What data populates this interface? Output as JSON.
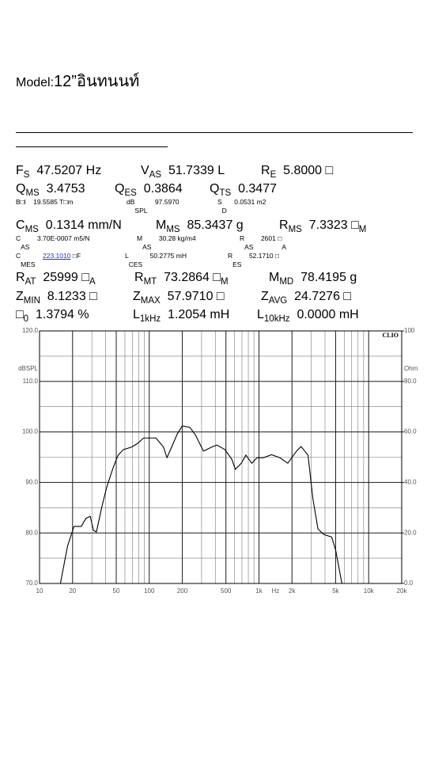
{
  "model": {
    "label": "Model:",
    "name": "12”อินทนนท์"
  },
  "params": [
    {
      "size": "large",
      "items": [
        {
          "label": "F",
          "sub": "S",
          "value": "47.5207 Hz"
        },
        {
          "label": "V",
          "sub": "AS",
          "value": "51.7339 L"
        },
        {
          "label": "R",
          "sub": "E",
          "value": "5.8000 □"
        }
      ]
    },
    {
      "size": "large",
      "items": [
        {
          "label": "Q",
          "sub": "MS",
          "value": "3.4753"
        },
        {
          "label": "Q",
          "sub": "ES",
          "value": "0.3864"
        },
        {
          "label": "Q",
          "sub": "TS",
          "value": "0.3477"
        }
      ]
    },
    {
      "size": "small",
      "items": [
        {
          "label": "B□l",
          "value": "19.5585 T□m"
        },
        {
          "label": "dB",
          "sub": "SPL",
          "value": "97.5970"
        },
        {
          "label": "S",
          "sub": "D",
          "value": "0.0531 m2"
        }
      ]
    },
    {
      "size": "large",
      "items": [
        {
          "label": "C",
          "sub": "MS",
          "value": "0.1314 mm/N"
        },
        {
          "label": "M",
          "sub": "MS",
          "value": "85.3437 g"
        },
        {
          "label": "R",
          "sub": "MS",
          "value": "7.3323 □",
          "value_sub": "M"
        }
      ]
    },
    {
      "size": "small",
      "items": [
        {
          "label": "C",
          "sub": "AS",
          "value": "3.70E-0007 m5/N"
        },
        {
          "label": "M",
          "sub": "AS",
          "value": "30.28 kg/m4"
        },
        {
          "label": "R",
          "sub": "AS",
          "value": "2601 □",
          "value_sub": "A"
        }
      ]
    },
    {
      "size": "small",
      "items": [
        {
          "label": "C",
          "sub": "MES",
          "value": "223.1010",
          "unit": "□F"
        },
        {
          "label": "L",
          "sub": "CES",
          "value": "50.2775 mH"
        },
        {
          "label": "R",
          "sub": "ES",
          "value": "52.1710 □"
        }
      ]
    },
    {
      "size": "large",
      "items": [
        {
          "label": "R",
          "sub": "AT",
          "value": "25999 □",
          "value_sub": "A"
        },
        {
          "label": "R",
          "sub": "MT",
          "value": "73.2864 □",
          "value_sub": "M"
        },
        {
          "label": "M",
          "sub": "MD",
          "value": "78.4195 g"
        }
      ]
    },
    {
      "size": "large",
      "items": [
        {
          "label": "Z",
          "sub": "MIN",
          "value": "8.1233 □"
        },
        {
          "label": "Z",
          "sub": "MAX",
          "value": "57.9710 □"
        },
        {
          "label": "Z",
          "sub": "AVG",
          "value": "24.7276 □"
        }
      ]
    },
    {
      "size": "large",
      "items": [
        {
          "label": "□",
          "sub": "0",
          "value": "1.3794 %"
        },
        {
          "label": "L",
          "sub": "1kHz",
          "value": "1.2054 mH"
        },
        {
          "label": "L",
          "sub": "10kHz",
          "value": "0.0000 mH"
        }
      ]
    }
  ],
  "chart_data": {
    "type": "line",
    "brand": "CLIO",
    "x_label": "Hz",
    "y_label": "dBSPL",
    "y2_label": "Ohm",
    "log_x": true,
    "grid": true,
    "color": "#000000",
    "xlim": [
      10,
      20000
    ],
    "xticks": [
      10,
      20,
      50,
      100,
      200,
      500,
      {
        "value": 1000,
        "label": "1k"
      },
      {
        "value": 2000,
        "label": "2k"
      },
      {
        "value": 5000,
        "label": "5k"
      },
      {
        "value": 10000,
        "label": "10k"
      },
      {
        "value": 20000,
        "label": "20k"
      }
    ],
    "ylim": [
      70,
      120
    ],
    "yticks": [
      {
        "value": 120,
        "label": "120.0"
      },
      {
        "value": 110,
        "label": "110.0"
      },
      {
        "value": 100,
        "label": "100.0"
      },
      {
        "value": 90,
        "label": "90.0"
      },
      {
        "value": 80,
        "label": "80.0"
      },
      {
        "value": 70,
        "label": "70.0"
      }
    ],
    "y2lim": [
      0,
      100
    ],
    "y2ticks": [
      100,
      {
        "value": 80,
        "label": "80.0"
      },
      {
        "value": 60,
        "label": "60.0"
      },
      {
        "value": 40,
        "label": "40.0"
      },
      {
        "value": 20,
        "label": "20.0"
      },
      {
        "value": 0,
        "label": "0.0"
      }
    ],
    "x": [
      15.5,
      18,
      20.6,
      24,
      26.5,
      29,
      31,
      33,
      37,
      41,
      47,
      52,
      58,
      69,
      78,
      89,
      115,
      135,
      145,
      160,
      180,
      200,
      235,
      265,
      312,
      370,
      414,
      490,
      565,
      610,
      690,
      760,
      860,
      960,
      1100,
      1300,
      1550,
      1830,
      2200,
      2420,
      2800,
      3100,
      3450,
      3900,
      4600,
      5000,
      5700
    ],
    "values": [
      70,
      77.4,
      81.3,
      81.3,
      82.9,
      83.3,
      80.5,
      80.2,
      85.2,
      89.1,
      93,
      95.4,
      96.5,
      97,
      97.7,
      98.8,
      98.8,
      97,
      94.9,
      97,
      99.6,
      101.2,
      100.9,
      99.3,
      96.2,
      97,
      97.4,
      96.5,
      94.6,
      92.6,
      93.8,
      95.4,
      93.8,
      94.9,
      94.9,
      95.5,
      94.9,
      93.8,
      96.2,
      97.1,
      95.4,
      86.8,
      80.8,
      79.7,
      79.2,
      76.6,
      70
    ]
  }
}
